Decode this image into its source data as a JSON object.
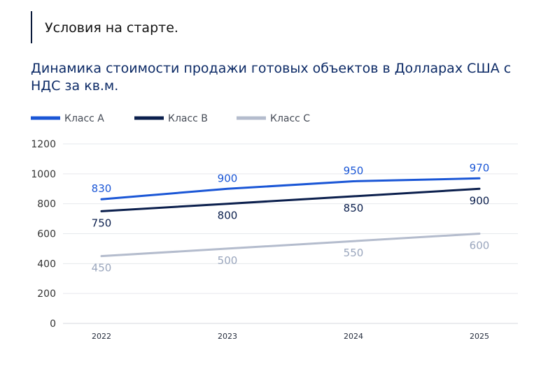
{
  "section_title": "Условия на старте.",
  "colors": {
    "class_a": "#1a56d6",
    "class_b": "#0b1f4d",
    "class_c": "#b4bccd",
    "label_a": "#1a56d6",
    "label_b": "#0b1f4d",
    "label_c": "#9aa6bd"
  },
  "chart_data": {
    "type": "line",
    "title": "Динамика стоимости продажи готовых объектов в Долларах США с НДС за кв.м.",
    "xlabel": "",
    "ylabel": "",
    "categories": [
      "2022",
      "2023",
      "2024",
      "2025"
    ],
    "ylim": [
      0,
      1200
    ],
    "yticks": [
      0,
      200,
      400,
      600,
      800,
      1000,
      1200
    ],
    "grid": true,
    "legend": "top-left",
    "series": [
      {
        "name": "Класс А",
        "values": [
          830,
          900,
          950,
          970
        ],
        "labels": [
          "830",
          "900",
          "950",
          "970"
        ]
      },
      {
        "name": "Класс В",
        "values": [
          750,
          800,
          850,
          900
        ],
        "labels": [
          "750",
          "800",
          "850",
          "900"
        ]
      },
      {
        "name": "Класс С",
        "values": [
          450,
          500,
          550,
          600
        ],
        "labels": [
          "450",
          "500",
          "550",
          "600"
        ]
      }
    ]
  }
}
